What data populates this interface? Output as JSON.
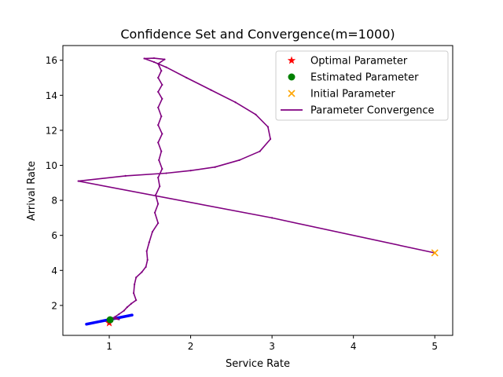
{
  "chart_data": {
    "type": "line",
    "title": "Confidence Set and Convergence(m=1000)",
    "xlabel": "Service Rate",
    "ylabel": "Arrival Rate",
    "xlim": [
      0.43,
      5.22
    ],
    "ylim": [
      0.29,
      16.84
    ],
    "xticks": [
      1,
      2,
      3,
      4,
      5
    ],
    "yticks": [
      2,
      4,
      6,
      8,
      10,
      12,
      14,
      16
    ],
    "grid": false,
    "legend_position": "top-right",
    "series": [
      {
        "name": "Optimal Parameter",
        "kind": "scatter",
        "marker": "star",
        "color": "#ff0000",
        "points": [
          [
            1.0,
            1.0
          ]
        ]
      },
      {
        "name": "Estimated Parameter",
        "kind": "scatter",
        "marker": "circle",
        "color": "#008000",
        "points": [
          [
            1.01,
            1.18
          ]
        ]
      },
      {
        "name": "Initial Parameter",
        "kind": "scatter",
        "marker": "x",
        "color": "#ffa500",
        "points": [
          [
            5.0,
            5.0
          ]
        ]
      },
      {
        "name": "Parameter Convergence",
        "kind": "line",
        "color": "#800080",
        "points": [
          [
            5.0,
            5.0
          ],
          [
            3.0,
            7.0
          ],
          [
            0.62,
            9.1
          ],
          [
            1.2,
            9.4
          ],
          [
            1.7,
            9.55
          ],
          [
            2.0,
            9.7
          ],
          [
            2.3,
            9.9
          ],
          [
            2.6,
            10.3
          ],
          [
            2.85,
            10.8
          ],
          [
            2.98,
            11.5
          ],
          [
            2.95,
            12.2
          ],
          [
            2.8,
            12.9
          ],
          [
            2.55,
            13.6
          ],
          [
            2.25,
            14.3
          ],
          [
            1.95,
            15.0
          ],
          [
            1.7,
            15.6
          ],
          [
            1.55,
            15.9
          ],
          [
            1.43,
            16.1
          ],
          [
            1.55,
            16.12
          ],
          [
            1.68,
            16.05
          ],
          [
            1.6,
            15.8
          ],
          [
            1.64,
            15.4
          ],
          [
            1.6,
            15.0
          ],
          [
            1.65,
            14.6
          ],
          [
            1.6,
            14.2
          ],
          [
            1.65,
            13.8
          ],
          [
            1.6,
            13.3
          ],
          [
            1.64,
            12.8
          ],
          [
            1.6,
            12.3
          ],
          [
            1.65,
            11.8
          ],
          [
            1.6,
            11.3
          ],
          [
            1.64,
            10.8
          ],
          [
            1.61,
            10.3
          ],
          [
            1.65,
            9.8
          ],
          [
            1.6,
            9.3
          ],
          [
            1.62,
            8.8
          ],
          [
            1.57,
            8.3
          ],
          [
            1.6,
            7.8
          ],
          [
            1.56,
            7.3
          ],
          [
            1.6,
            6.7
          ],
          [
            1.53,
            6.2
          ],
          [
            1.49,
            5.6
          ],
          [
            1.46,
            5.1
          ],
          [
            1.47,
            4.6
          ],
          [
            1.45,
            4.2
          ],
          [
            1.4,
            3.9
          ],
          [
            1.33,
            3.6
          ],
          [
            1.31,
            3.2
          ],
          [
            1.3,
            2.7
          ],
          [
            1.33,
            2.3
          ],
          [
            1.27,
            2.1
          ],
          [
            1.22,
            1.9
          ],
          [
            1.18,
            1.7
          ],
          [
            1.12,
            1.5
          ],
          [
            1.07,
            1.35
          ],
          [
            1.1,
            1.25
          ],
          [
            1.05,
            1.3
          ],
          [
            1.12,
            1.2
          ],
          [
            1.04,
            1.25
          ],
          [
            1.0,
            1.2
          ]
        ]
      },
      {
        "name": "Confidence Set",
        "kind": "band",
        "color": "#0000ff",
        "points": [
          [
            0.72,
            0.93
          ],
          [
            1.28,
            1.45
          ]
        ]
      }
    ]
  }
}
